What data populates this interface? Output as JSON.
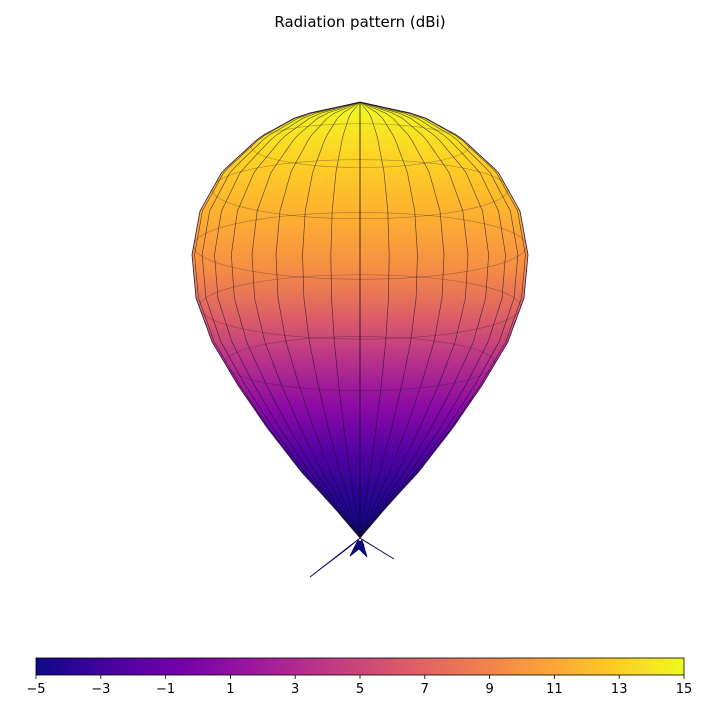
{
  "chart_data": {
    "type": "surface3d",
    "title": "Radiation pattern (dBi)",
    "quantity": "gain_dBi",
    "colormap": "plasma",
    "colorbar": {
      "orientation": "horizontal",
      "range": [
        -5,
        15
      ],
      "ticks": [
        -5,
        -3,
        -1,
        1,
        3,
        5,
        7,
        9,
        11,
        13,
        15
      ],
      "tick_labels": [
        "−5",
        "−3",
        "−1",
        "1",
        "3",
        "5",
        "7",
        "9",
        "11",
        "13",
        "15"
      ]
    },
    "pattern": {
      "main_lobe_direction": "up",
      "peak_gain_dBi": 15,
      "min_gain_dBi": -5,
      "back_lobes": 3
    },
    "axes_visible": false,
    "grid": "wireframe",
    "legend": "none"
  }
}
